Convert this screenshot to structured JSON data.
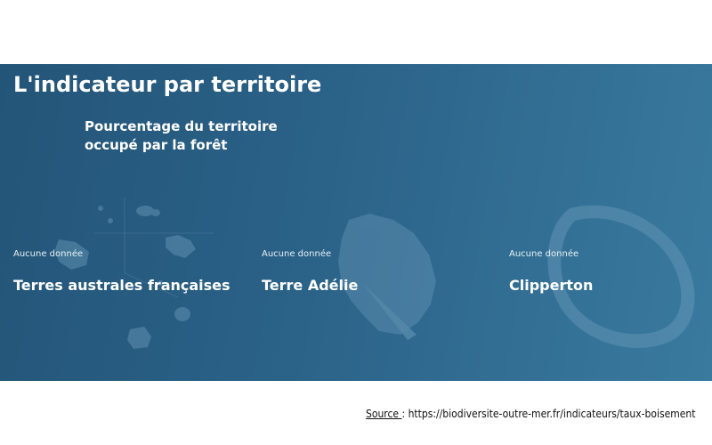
{
  "panel": {
    "title": "L'indicateur par territoire",
    "subtitle_line1": "Pourcentage du territoire",
    "subtitle_line2": "occupé par la forêt"
  },
  "territories": [
    {
      "status": "Aucune donnée",
      "name": "Terres australes françaises"
    },
    {
      "status": "Aucune donnée",
      "name": "Terre Adélie"
    },
    {
      "status": "Aucune donnée",
      "name": "Clipperton"
    }
  ],
  "source": {
    "label": "Source ",
    "separator": ":",
    "url": "https://biodiversite-outre-mer.fr/indicateurs/taux-boisement"
  },
  "colors": {
    "panel_dark": "#235578",
    "panel_light": "#3a7a9f",
    "map_shape": "#6b9bbb"
  }
}
